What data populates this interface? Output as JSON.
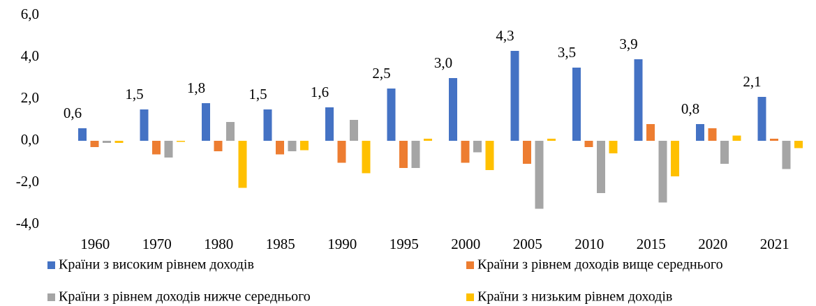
{
  "chart_data": {
    "type": "bar",
    "categories": [
      "1960",
      "1970",
      "1980",
      "1985",
      "1990",
      "1995",
      "2000",
      "2005",
      "2010",
      "2015",
      "2020",
      "2021"
    ],
    "series": [
      {
        "name": "Країни з високим рівнем доходів",
        "color": "#4472c4",
        "values": [
          0.6,
          1.5,
          1.8,
          1.5,
          1.6,
          2.5,
          3.0,
          4.3,
          3.5,
          3.9,
          0.8,
          2.1
        ],
        "value_labels": [
          "0,6",
          "1,5",
          "1,8",
          "1,5",
          "1,6",
          "2,5",
          "3,0",
          "4,3",
          "3,5",
          "3,9",
          "0,8",
          "2,1"
        ]
      },
      {
        "name": "Країни з рівнем доходів вище середнього",
        "color": "#ed7d31",
        "values": [
          -0.3,
          -0.65,
          -0.5,
          -0.65,
          -1.05,
          -1.3,
          -1.05,
          -1.1,
          -0.3,
          0.8,
          0.6,
          0.1
        ]
      },
      {
        "name": "Країни з рівнем доходів нижче середнього",
        "color": "#a5a5a5",
        "values": [
          -0.1,
          -0.8,
          0.9,
          -0.5,
          1.0,
          -1.3,
          -0.55,
          -3.25,
          -2.5,
          -2.95,
          -1.1,
          -1.35
        ]
      },
      {
        "name": "Країни з низьким рівнем доходів",
        "color": "#ffc000",
        "values": [
          -0.1,
          -0.05,
          -2.25,
          -0.45,
          -1.55,
          0.1,
          -1.4,
          0.1,
          -0.6,
          -1.7,
          0.25,
          -0.35
        ]
      }
    ],
    "ylim": [
      -4,
      6
    ],
    "yticks": [
      {
        "value": -4,
        "label": "-4,0"
      },
      {
        "value": -2,
        "label": "-2,0"
      },
      {
        "value": 0,
        "label": "0,0"
      },
      {
        "value": 2,
        "label": "2,0"
      },
      {
        "value": 4,
        "label": "4,0"
      },
      {
        "value": 6,
        "label": "6,0"
      }
    ],
    "grid": false
  }
}
